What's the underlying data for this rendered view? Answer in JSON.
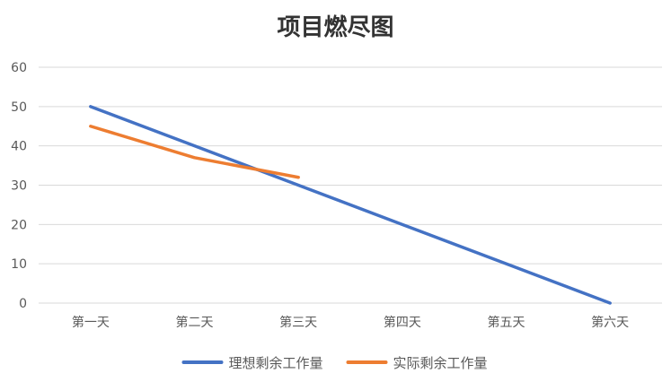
{
  "chart_data": {
    "type": "line",
    "title": "项目燃尽图",
    "categories": [
      "第一天",
      "第二天",
      "第三天",
      "第四天",
      "第五天",
      "第六天"
    ],
    "series": [
      {
        "name": "理想剩余工作量",
        "color": "#4472C4",
        "values": [
          50,
          40,
          30,
          20,
          10,
          0
        ]
      },
      {
        "name": "实际剩余工作量",
        "color": "#ED7D31",
        "values": [
          45,
          37,
          32,
          null,
          null,
          null
        ]
      }
    ],
    "ylim": [
      0,
      60
    ],
    "yticks": [
      0,
      10,
      20,
      30,
      40,
      50,
      60
    ],
    "grid": true,
    "legend": "bottom"
  }
}
